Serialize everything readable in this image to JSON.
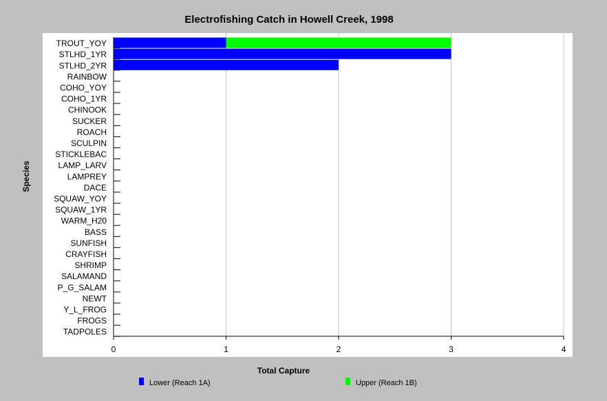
{
  "chart_data": {
    "type": "bar",
    "orientation": "horizontal",
    "stacked": true,
    "title": "Electrofishing Catch in Howell Creek, 1998",
    "xlabel": "Total Capture",
    "ylabel": "Species",
    "xlim": [
      0,
      4
    ],
    "xticks": [
      "0",
      "1",
      "2",
      "3",
      "4"
    ],
    "grid": true,
    "legend_placement": "bottom",
    "categories": [
      "TROUT_YOY",
      "STLHD_1YR",
      "STLHD_2YR",
      "RAINBOW",
      "COHO_YOY",
      "COHO_1YR",
      "CHINOOK",
      "SUCKER",
      "ROACH",
      "SCULPIN",
      "STICKLEBAC",
      "LAMP_LARV",
      "LAMPREY",
      "DACE",
      "SQUAW_YOY",
      "SQUAW_1YR",
      "WARM_H20",
      "BASS",
      "SUNFISH",
      "CRAYFISH",
      "SHRIMP",
      "SALAMAND",
      "P_G_SALAM",
      "NEWT",
      "Y_L_FROG",
      "FROGS",
      "TADPOLES"
    ],
    "series": [
      {
        "name": "Lower (Reach 1A)",
        "color": "#0000ff",
        "values": [
          1,
          3,
          2,
          0,
          0,
          0,
          0,
          0,
          0,
          0,
          0,
          0,
          0,
          0,
          0,
          0,
          0,
          0,
          0,
          0,
          0,
          0,
          0,
          0,
          0,
          0,
          0
        ]
      },
      {
        "name": "Upper (Reach 1B)",
        "color": "#00ff00",
        "values": [
          2,
          0,
          0,
          0,
          0,
          0,
          0,
          0,
          0,
          0,
          0,
          0,
          0,
          0,
          0,
          0,
          0,
          0,
          0,
          0,
          0,
          0,
          0,
          0,
          0,
          0,
          0
        ]
      }
    ]
  },
  "colors": {
    "background": "#c0c0c0",
    "plot_area": "#ffffff",
    "grid": "#c0c0c0"
  }
}
